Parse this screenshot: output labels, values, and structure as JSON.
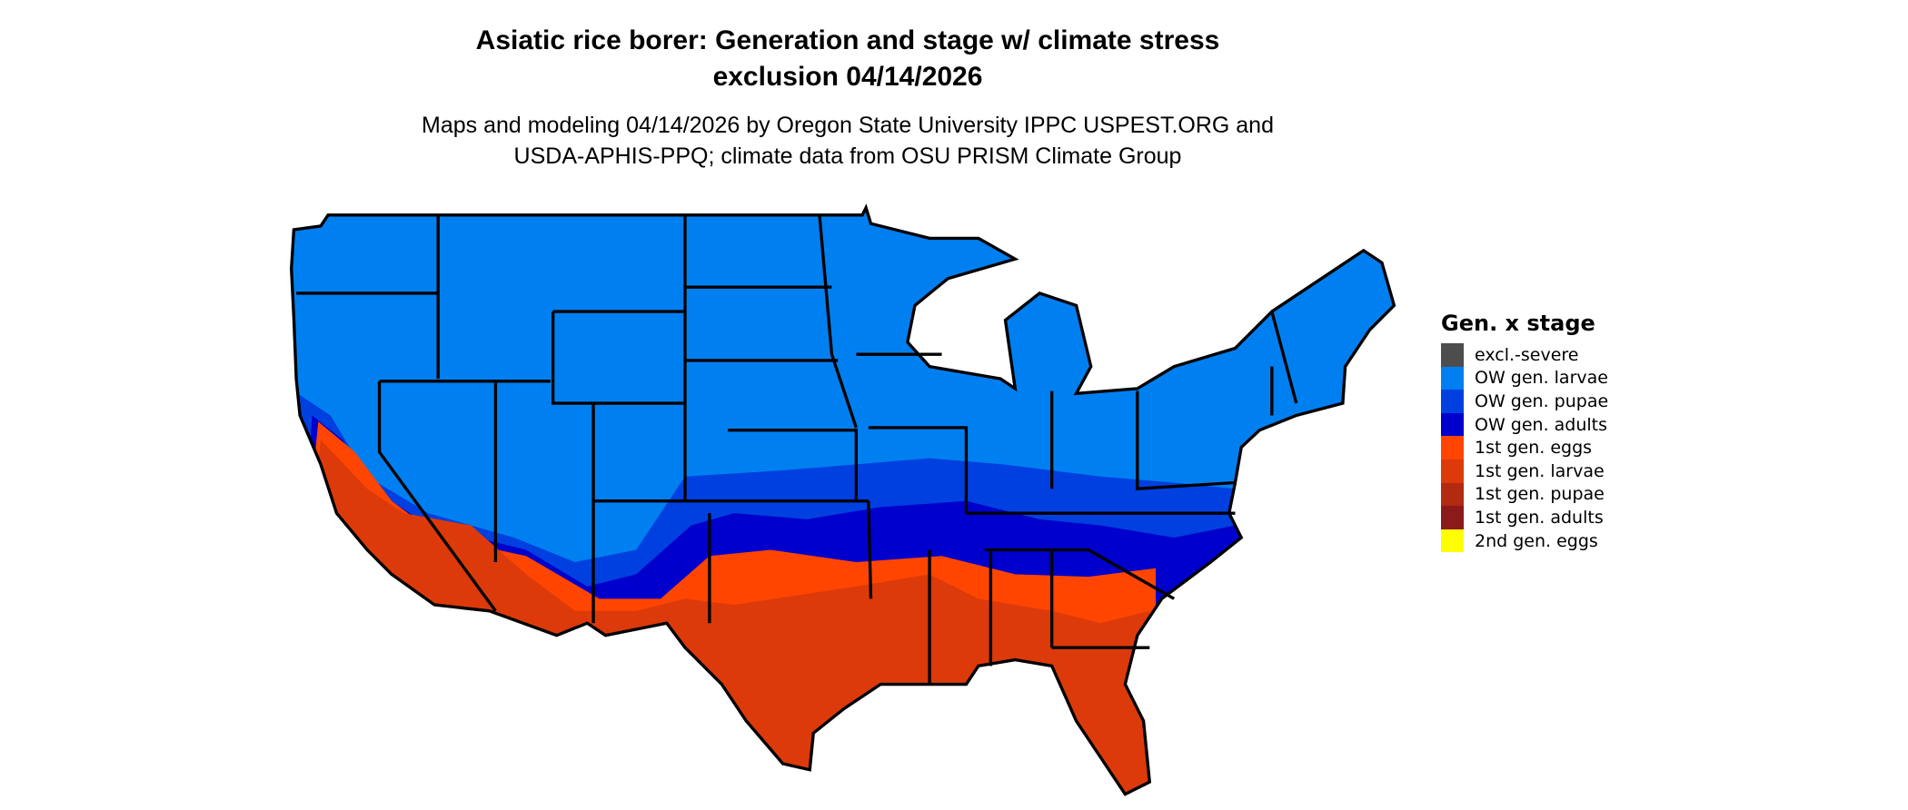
{
  "title_line1": "Asiatic rice borer: Generation and stage w/ climate stress",
  "title_line2": "exclusion 04/14/2026",
  "subtitle_line1": "Maps and modeling 04/14/2026 by Oregon State University IPPC USPEST.ORG and",
  "subtitle_line2": "USDA-APHIS-PPQ; climate data from OSU PRISM Climate Group",
  "legend": {
    "title": "Gen. x stage",
    "items": [
      {
        "label": "excl.-severe",
        "color": "#4d4d4d"
      },
      {
        "label": "OW gen. larvae",
        "color": "#0080f0"
      },
      {
        "label": "OW gen. pupae",
        "color": "#0040e0"
      },
      {
        "label": "OW gen. adults",
        "color": "#0000cc"
      },
      {
        "label": "1st gen. eggs",
        "color": "#ff4500"
      },
      {
        "label": "1st gen. larvae",
        "color": "#dc3a0a"
      },
      {
        "label": "1st gen. pupae",
        "color": "#b22a12"
      },
      {
        "label": "1st gen. adults",
        "color": "#8b1a1a"
      },
      {
        "label": "2nd gen. eggs",
        "color": "#ffff00"
      }
    ]
  },
  "map": {
    "boundary_color": "#000000"
  }
}
